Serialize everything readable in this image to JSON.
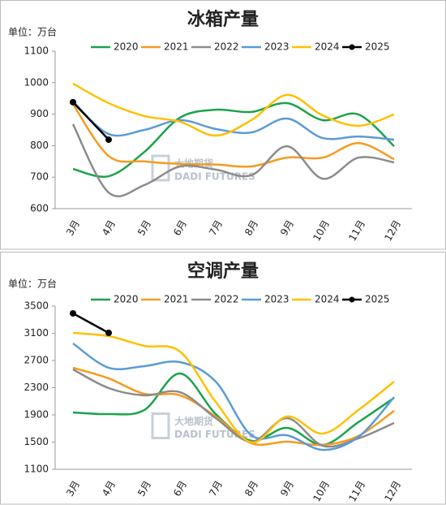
{
  "chart_data": [
    {
      "type": "line",
      "title": "冰箱产量",
      "unit_label": "单位：万台",
      "watermark": {
        "name": "大地期货",
        "sub": "DADI FUTURES"
      },
      "categories": [
        "3月",
        "4月",
        "5月",
        "6月",
        "7月",
        "8月",
        "9月",
        "10月",
        "11月",
        "12月"
      ],
      "ylim": [
        600,
        1100
      ],
      "yticks": [
        600,
        700,
        800,
        900,
        1000,
        1100
      ],
      "grid": false,
      "smooth": true,
      "legend": "top",
      "series": [
        {
          "name": "2020",
          "color": "#1aa34a",
          "values": [
            726,
            703,
            780,
            889,
            914,
            907,
            935,
            881,
            899,
            798
          ]
        },
        {
          "name": "2021",
          "color": "#f79a1f",
          "values": [
            932,
            767,
            750,
            742,
            740,
            734,
            762,
            762,
            808,
            757
          ]
        },
        {
          "name": "2022",
          "color": "#8c8c8c",
          "values": [
            868,
            651,
            675,
            734,
            724,
            706,
            798,
            695,
            762,
            747
          ]
        },
        {
          "name": "2023",
          "color": "#5b9bd5",
          "values": [
            940,
            837,
            850,
            881,
            853,
            842,
            886,
            824,
            829,
            819
          ]
        },
        {
          "name": "2024",
          "color": "#ffc000",
          "values": [
            997,
            935,
            894,
            876,
            832,
            881,
            961,
            896,
            863,
            899
          ]
        },
        {
          "name": "2025",
          "color": "#000000",
          "markers": true,
          "values": [
            938,
            819,
            null,
            null,
            null,
            null,
            null,
            null,
            null,
            null
          ]
        }
      ]
    },
    {
      "type": "line",
      "title": "空调产量",
      "unit_label": "单位：万台",
      "watermark": {
        "name": "大地期货",
        "sub": "DADI FUTURES"
      },
      "categories": [
        "3月",
        "4月",
        "5月",
        "6月",
        "7月",
        "8月",
        "9月",
        "10月",
        "11月",
        "12月"
      ],
      "ylim": [
        1100,
        3500
      ],
      "yticks": [
        1100,
        1500,
        1900,
        2300,
        2700,
        3100,
        3500
      ],
      "grid": false,
      "smooth": true,
      "legend": "top",
      "series": [
        {
          "name": "2020",
          "color": "#1aa34a",
          "values": [
            1936,
            1912,
            1972,
            2509,
            1912,
            1518,
            1709,
            1458,
            1793,
            2151
          ]
        },
        {
          "name": "2021",
          "color": "#f79a1f",
          "values": [
            2593,
            2437,
            2210,
            2187,
            1876,
            1482,
            1506,
            1458,
            1590,
            1960
          ]
        },
        {
          "name": "2022",
          "color": "#8c8c8c",
          "values": [
            2569,
            2294,
            2187,
            2234,
            1852,
            1506,
            1852,
            1446,
            1554,
            1781
          ]
        },
        {
          "name": "2023",
          "color": "#5b9bd5",
          "values": [
            2951,
            2593,
            2617,
            2676,
            2390,
            1600,
            1600,
            1385,
            1576,
            2161
          ]
        },
        {
          "name": "2024",
          "color": "#ffc000",
          "values": [
            3106,
            3058,
            2915,
            2831,
            2091,
            1494,
            1876,
            1625,
            1972,
            2390
          ]
        },
        {
          "name": "2025",
          "color": "#000000",
          "markers": true,
          "values": [
            3393,
            3106,
            null,
            null,
            null,
            null,
            null,
            null,
            null,
            null
          ]
        }
      ]
    }
  ]
}
